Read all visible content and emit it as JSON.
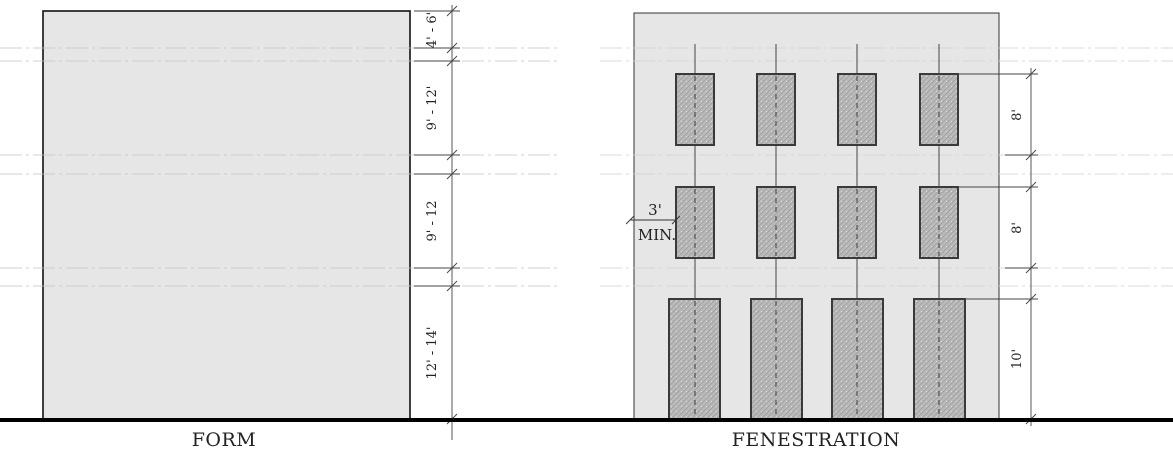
{
  "captions": {
    "form": "FORM",
    "fenestration": "FENESTRATION"
  },
  "form_dims": {
    "top": "4' - 6'",
    "upper": "9' - 12'",
    "middle": "9' - 12",
    "ground": "12' - 14'"
  },
  "fen_dims": {
    "upper": "8'",
    "middle": "8'",
    "ground": "10'"
  },
  "clearance": {
    "value": "3'",
    "label": "MIN."
  },
  "colors": {
    "wall": "#e6e6e6",
    "window": "#b8b8b8",
    "window_frame": "#3a3a3a",
    "ground": "#000000",
    "line": "#333333"
  }
}
